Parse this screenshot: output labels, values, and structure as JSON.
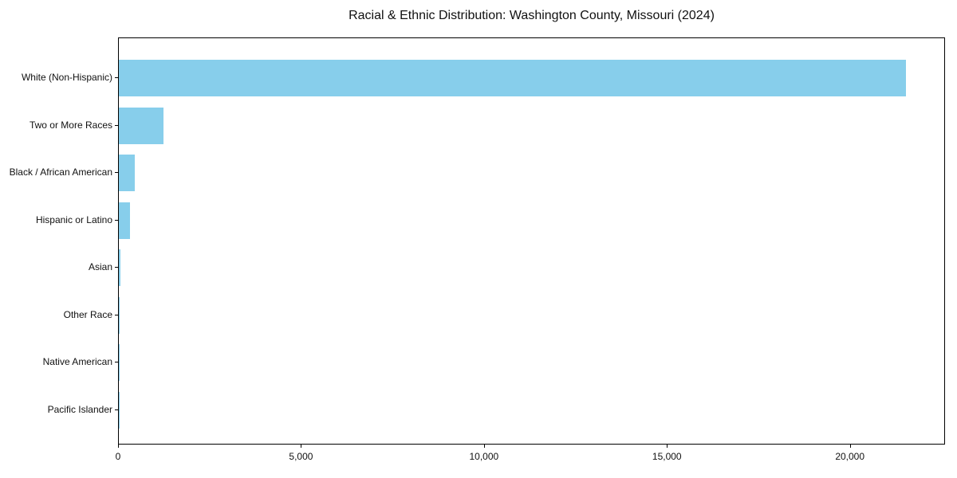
{
  "chart_data": {
    "type": "bar",
    "orientation": "horizontal",
    "title": "Racial & Ethnic Distribution: Washington County, Missouri (2024)",
    "categories": [
      "White (Non-Hispanic)",
      "Two or More Races",
      "Black / African American",
      "Hispanic or Latino",
      "Asian",
      "Other Race",
      "Native American",
      "Pacific Islander"
    ],
    "values": [
      21500,
      1220,
      430,
      300,
      40,
      20,
      15,
      10
    ],
    "xlabel": "",
    "ylabel": "",
    "xlim": [
      0,
      22600
    ],
    "xticks": [
      0,
      5000,
      10000,
      15000,
      20000
    ],
    "xtick_labels": [
      "0",
      "5,000",
      "10,000",
      "15,000",
      "20,000"
    ],
    "bar_color": "#87CEEB",
    "axis_color": "#000000",
    "text_color": "#111111",
    "grid": false,
    "legend": null
  }
}
